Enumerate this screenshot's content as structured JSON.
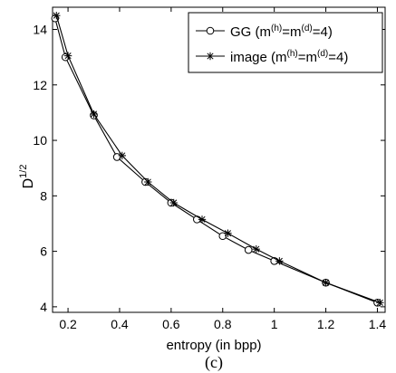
{
  "chart_data": {
    "type": "line",
    "title": "",
    "xlabel": "entropy (in bpp)",
    "ylabel_base": "D",
    "ylabel_sup": "1/2",
    "caption": "(c)",
    "xlim": [
      0.14,
      1.43
    ],
    "ylim": [
      3.8,
      14.8
    ],
    "xticks": [
      0.2,
      0.4,
      0.6,
      0.8,
      1.0,
      1.2,
      1.4
    ],
    "xtick_labels": [
      "0.2",
      "0.4",
      "0.6",
      "0.8",
      "1",
      "1.2",
      "1.4"
    ],
    "yticks": [
      4,
      6,
      8,
      10,
      12,
      14
    ],
    "ytick_labels": [
      "4",
      "6",
      "8",
      "10",
      "12",
      "14"
    ],
    "grid": false,
    "legend_position": "top-right",
    "series": [
      {
        "name_base": "GG (m",
        "name_sup1": "(h)",
        "name_mid": "=m",
        "name_sup2": "(d)",
        "name_end": "=4)",
        "marker": "circle",
        "color": "#000000",
        "x": [
          0.15,
          0.19,
          0.3,
          0.39,
          0.5,
          0.6,
          0.7,
          0.8,
          0.9,
          1.0,
          1.2,
          1.4
        ],
        "y": [
          14.4,
          13.0,
          10.9,
          9.4,
          8.5,
          7.75,
          7.15,
          6.55,
          6.05,
          5.65,
          4.87,
          4.15
        ]
      },
      {
        "name_base": "image (m",
        "name_sup1": "(h)",
        "name_mid": "=m",
        "name_sup2": "(d)",
        "name_end": "=4)",
        "marker": "star",
        "color": "#000000",
        "x": [
          0.155,
          0.2,
          0.3,
          0.41,
          0.51,
          0.61,
          0.72,
          0.82,
          0.93,
          1.02,
          1.2,
          1.41
        ],
        "y": [
          14.5,
          13.05,
          10.95,
          9.45,
          8.5,
          7.75,
          7.15,
          6.65,
          6.08,
          5.65,
          4.87,
          4.15
        ]
      }
    ]
  }
}
